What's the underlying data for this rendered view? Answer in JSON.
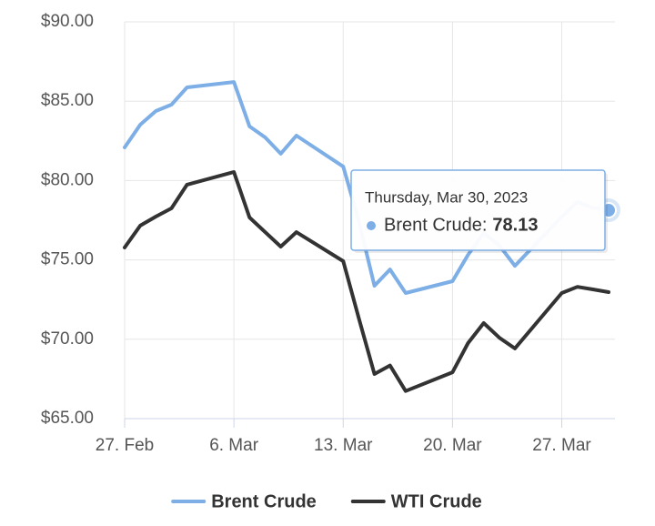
{
  "chart_data": {
    "type": "line",
    "x": [
      "2023-02-27",
      "2023-02-28",
      "2023-03-01",
      "2023-03-02",
      "2023-03-03",
      "2023-03-06",
      "2023-03-07",
      "2023-03-08",
      "2023-03-09",
      "2023-03-10",
      "2023-03-13",
      "2023-03-14",
      "2023-03-15",
      "2023-03-16",
      "2023-03-17",
      "2023-03-20",
      "2023-03-21",
      "2023-03-22",
      "2023-03-23",
      "2023-03-24",
      "2023-03-27",
      "2023-03-28",
      "2023-03-29",
      "2023-03-30"
    ],
    "series": [
      {
        "name": "Brent Crude",
        "color": "#7dafe6",
        "values": [
          82.09,
          83.52,
          84.38,
          84.78,
          85.87,
          86.21,
          83.41,
          82.72,
          81.69,
          82.83,
          80.88,
          77.45,
          73.37,
          74.4,
          72.91,
          73.66,
          75.32,
          76.69,
          75.91,
          74.63,
          77.71,
          78.65,
          78.28,
          78.13
        ]
      },
      {
        "name": "WTI Crude",
        "color": "#333333",
        "values": [
          75.78,
          77.16,
          77.73,
          78.25,
          79.74,
          80.54,
          77.67,
          76.75,
          75.84,
          76.75,
          74.92,
          71.33,
          67.81,
          68.35,
          66.74,
          67.92,
          69.76,
          71.02,
          70.1,
          69.42,
          72.91,
          73.3,
          73.14,
          72.97
        ]
      }
    ],
    "xlim": [
      "2023-02-27",
      "2023-03-30"
    ],
    "xticks": [
      {
        "value": "2023-02-27",
        "label": "27. Feb"
      },
      {
        "value": "2023-03-06",
        "label": "6. Mar"
      },
      {
        "value": "2023-03-13",
        "label": "13. Mar"
      },
      {
        "value": "2023-03-20",
        "label": "20. Mar"
      },
      {
        "value": "2023-03-27",
        "label": "27. Mar"
      }
    ],
    "ylim": [
      65,
      90
    ],
    "yticks": [
      {
        "value": 65,
        "label": "$65.00"
      },
      {
        "value": 70,
        "label": "$70.00"
      },
      {
        "value": 75,
        "label": "$75.00"
      },
      {
        "value": 80,
        "label": "$80.00"
      },
      {
        "value": 85,
        "label": "$85.00"
      },
      {
        "value": 90,
        "label": "$90.00"
      }
    ],
    "grid": true,
    "legend": "bottom",
    "tooltip": {
      "title": "Thursday, Mar 30, 2023",
      "label": "Brent Crude:",
      "value": 78.13
    }
  }
}
